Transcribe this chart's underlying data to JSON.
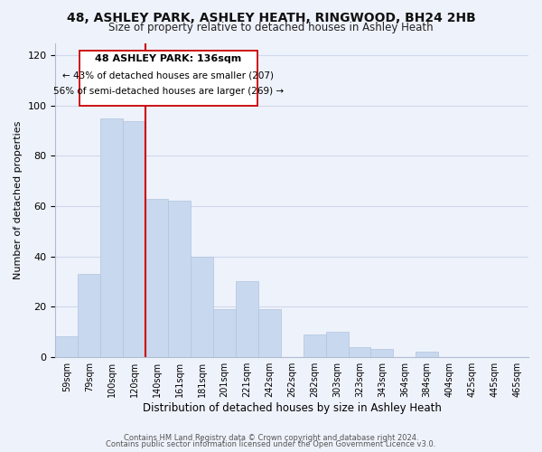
{
  "title": "48, ASHLEY PARK, ASHLEY HEATH, RINGWOOD, BH24 2HB",
  "subtitle": "Size of property relative to detached houses in Ashley Heath",
  "xlabel": "Distribution of detached houses by size in Ashley Heath",
  "ylabel": "Number of detached properties",
  "bar_color": "#c8d8ee",
  "bar_edge_color": "#b0c4de",
  "categories": [
    "59sqm",
    "79sqm",
    "100sqm",
    "120sqm",
    "140sqm",
    "161sqm",
    "181sqm",
    "201sqm",
    "221sqm",
    "242sqm",
    "262sqm",
    "282sqm",
    "303sqm",
    "323sqm",
    "343sqm",
    "364sqm",
    "384sqm",
    "404sqm",
    "425sqm",
    "445sqm",
    "465sqm"
  ],
  "values": [
    8,
    33,
    95,
    94,
    63,
    62,
    40,
    19,
    30,
    19,
    0,
    9,
    10,
    4,
    3,
    0,
    2,
    0,
    0,
    0,
    0
  ],
  "ylim": [
    0,
    125
  ],
  "yticks": [
    0,
    20,
    40,
    60,
    80,
    100,
    120
  ],
  "annotation_text_line1": "48 ASHLEY PARK: 136sqm",
  "annotation_text_line2": "← 43% of detached houses are smaller (207)",
  "annotation_text_line3": "56% of semi-detached houses are larger (269) →",
  "vline_color": "#cc0000",
  "footer_line1": "Contains HM Land Registry data © Crown copyright and database right 2024.",
  "footer_line2": "Contains public sector information licensed under the Open Government Licence v3.0.",
  "bg_color": "#eef2fb",
  "grid_color": "#d0d8ec"
}
